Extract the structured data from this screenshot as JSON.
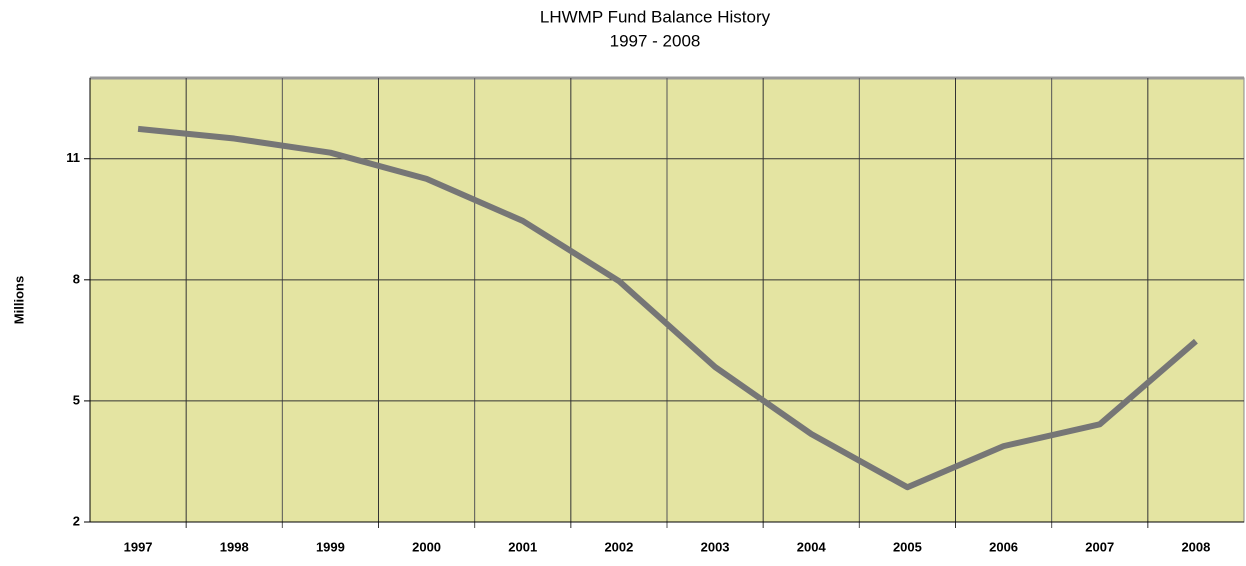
{
  "chart_data": {
    "type": "line",
    "title": "LHWMP Fund Balance History",
    "subtitle": "1997 - 2008",
    "y_label": "Millions",
    "categories": [
      "1997",
      "1998",
      "1999",
      "2000",
      "2001",
      "2002",
      "2003",
      "2004",
      "2005",
      "2006",
      "2007",
      "2008"
    ],
    "values": [
      11.74,
      11.5,
      11.15,
      10.5,
      9.46,
      7.97,
      5.84,
      4.18,
      2.86,
      3.88,
      4.42,
      6.48
    ],
    "color": "#767676",
    "background": "#e4e4a2",
    "ylim": [
      2,
      13
    ],
    "yticks": [
      2,
      5,
      8,
      11
    ],
    "grid": true
  }
}
